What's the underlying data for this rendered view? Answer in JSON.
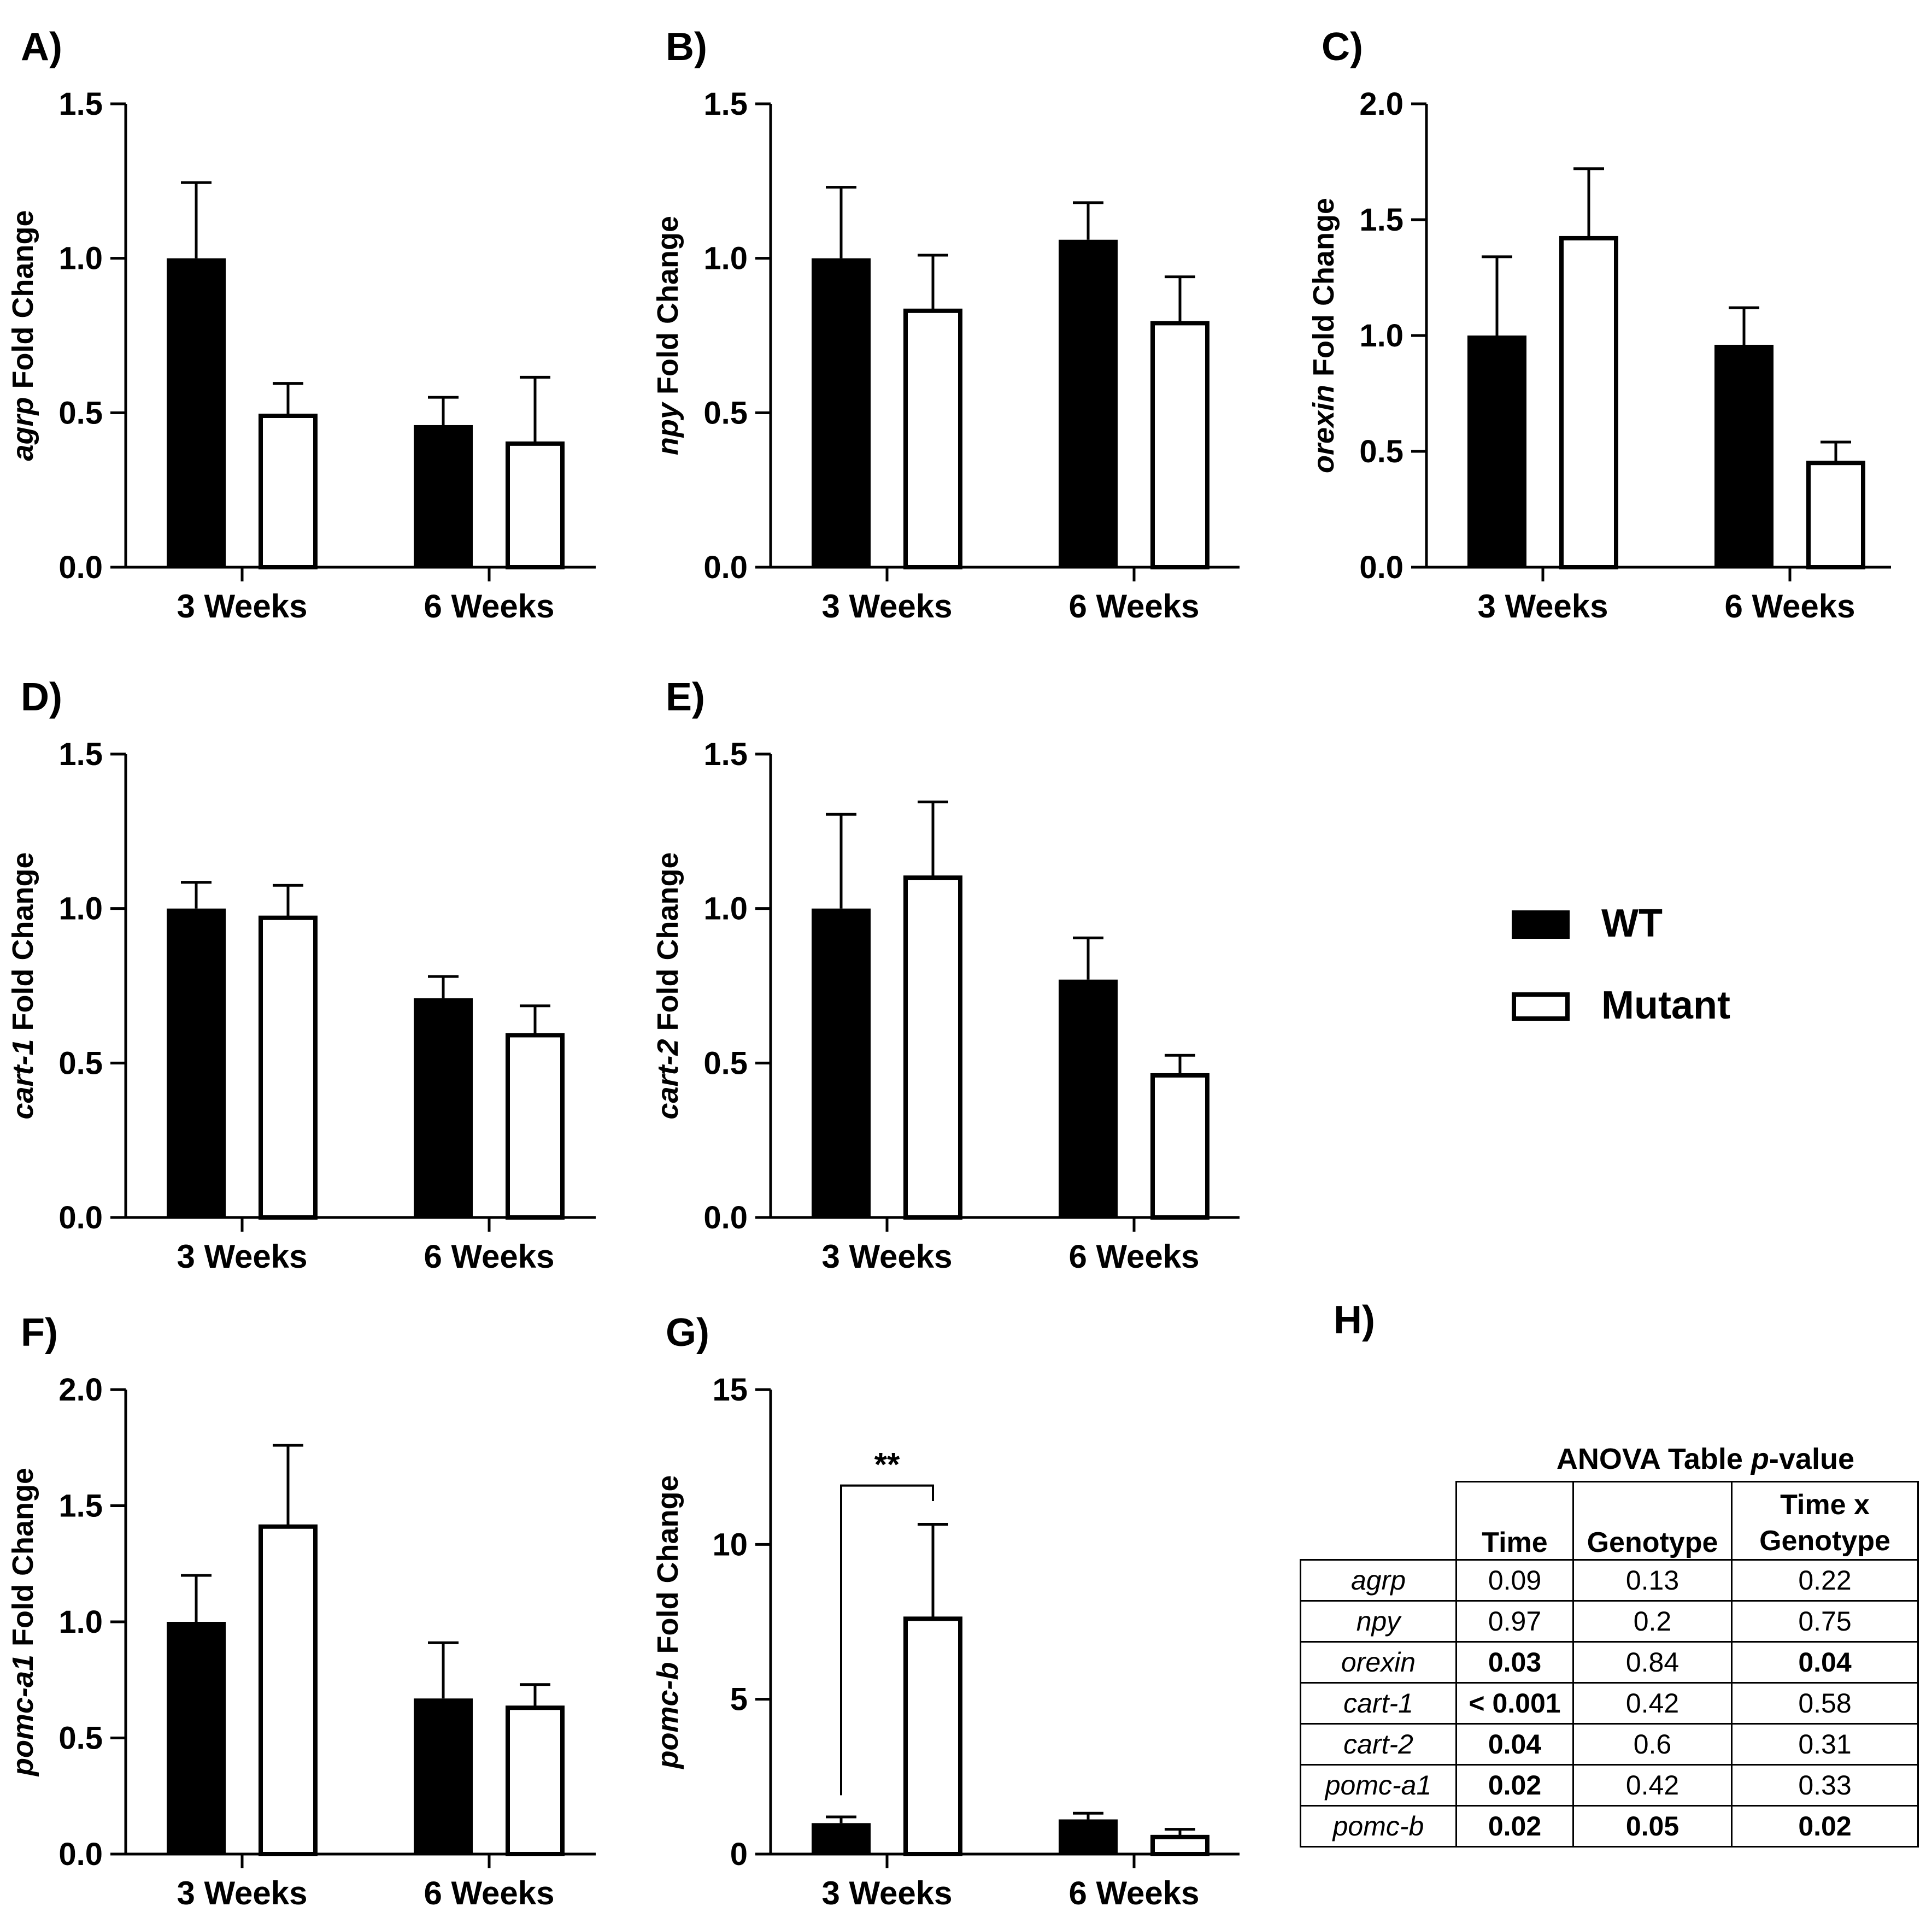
{
  "legend": [
    {
      "name": "WT",
      "fill": "#000000"
    },
    {
      "name": "Mutant",
      "fill": "#ffffff"
    }
  ],
  "chart_data": [
    {
      "panel": "A)",
      "type": "bar",
      "gene": "agrp",
      "ylabel_suffix": " Fold Change",
      "categories": [
        "3 Weeks",
        "6 Weeks"
      ],
      "ylim": [
        0,
        1.5
      ],
      "ticks": [
        0.0,
        0.5,
        1.0,
        1.5
      ],
      "tick_decimals": 1,
      "series": [
        {
          "name": "WT",
          "values": [
            1.0,
            0.46
          ],
          "errors": [
            0.245,
            0.09
          ]
        },
        {
          "name": "Mutant",
          "values": [
            0.49,
            0.4
          ],
          "errors": [
            0.105,
            0.215
          ]
        }
      ]
    },
    {
      "panel": "B)",
      "type": "bar",
      "gene": "npy",
      "ylabel_suffix": " Fold Change",
      "categories": [
        "3 Weeks",
        "6 Weeks"
      ],
      "ylim": [
        0,
        1.5
      ],
      "ticks": [
        0.0,
        0.5,
        1.0,
        1.5
      ],
      "tick_decimals": 1,
      "series": [
        {
          "name": "WT",
          "values": [
            1.0,
            1.06
          ],
          "errors": [
            0.23,
            0.12
          ]
        },
        {
          "name": "Mutant",
          "values": [
            0.83,
            0.79
          ],
          "errors": [
            0.18,
            0.15
          ]
        }
      ]
    },
    {
      "panel": "C)",
      "type": "bar",
      "gene": "orexin",
      "ylabel_suffix": " Fold Change",
      "categories": [
        "3 Weeks",
        "6 Weeks"
      ],
      "ylim": [
        0,
        2.0
      ],
      "ticks": [
        0.0,
        0.5,
        1.0,
        1.5,
        2.0
      ],
      "tick_decimals": 1,
      "series": [
        {
          "name": "WT",
          "values": [
            1.0,
            0.96
          ],
          "errors": [
            0.34,
            0.16
          ]
        },
        {
          "name": "Mutant",
          "values": [
            1.42,
            0.45
          ],
          "errors": [
            0.3,
            0.09
          ]
        }
      ]
    },
    {
      "panel": "D)",
      "type": "bar",
      "gene": "cart-1",
      "ylabel_suffix": " Fold Change",
      "categories": [
        "3 Weeks",
        "6 Weeks"
      ],
      "ylim": [
        0,
        1.5
      ],
      "ticks": [
        0.0,
        0.5,
        1.0,
        1.5
      ],
      "tick_decimals": 1,
      "series": [
        {
          "name": "WT",
          "values": [
            1.0,
            0.71
          ],
          "errors": [
            0.085,
            0.07
          ]
        },
        {
          "name": "Mutant",
          "values": [
            0.97,
            0.59
          ],
          "errors": [
            0.105,
            0.095
          ]
        }
      ]
    },
    {
      "panel": "E)",
      "type": "bar",
      "gene": "cart-2",
      "ylabel_suffix": " Fold Change",
      "categories": [
        "3 Weeks",
        "6 Weeks"
      ],
      "ylim": [
        0,
        1.5
      ],
      "ticks": [
        0.0,
        0.5,
        1.0,
        1.5
      ],
      "tick_decimals": 1,
      "series": [
        {
          "name": "WT",
          "values": [
            1.0,
            0.77
          ],
          "errors": [
            0.305,
            0.135
          ]
        },
        {
          "name": "Mutant",
          "values": [
            1.1,
            0.46
          ],
          "errors": [
            0.245,
            0.065
          ]
        }
      ]
    },
    {
      "panel": "F)",
      "type": "bar",
      "gene": "pomc-a1",
      "ylabel_suffix": " Fold Change",
      "categories": [
        "3 Weeks",
        "6 Weeks"
      ],
      "ylim": [
        0,
        2.0
      ],
      "ticks": [
        0.0,
        0.5,
        1.0,
        1.5,
        2.0
      ],
      "tick_decimals": 1,
      "series": [
        {
          "name": "WT",
          "values": [
            1.0,
            0.67
          ],
          "errors": [
            0.2,
            0.24
          ]
        },
        {
          "name": "Mutant",
          "values": [
            1.41,
            0.63
          ],
          "errors": [
            0.35,
            0.1
          ]
        }
      ]
    },
    {
      "panel": "G)",
      "type": "bar",
      "gene": "pomc-b",
      "ylabel_suffix": " Fold Change",
      "categories": [
        "3 Weeks",
        "6 Weeks"
      ],
      "ylim": [
        0,
        15
      ],
      "ticks": [
        0,
        5,
        10,
        15
      ],
      "tick_decimals": 0,
      "series": [
        {
          "name": "WT",
          "values": [
            1.0,
            1.12
          ],
          "errors": [
            0.2,
            0.2
          ]
        },
        {
          "name": "Mutant",
          "values": [
            7.6,
            0.55
          ],
          "errors": [
            3.05,
            0.25
          ]
        }
      ],
      "annotation": {
        "text": "**",
        "from_series": 0,
        "to_series": 1,
        "category": 0,
        "bracket_y": 11.9,
        "left_end_y": 1.9,
        "right_end_y": 11.4
      }
    }
  ],
  "anova": {
    "panel": "H)",
    "title_prefix": "ANOVA Table ",
    "title_italic": "p",
    "title_suffix": "-value",
    "headers": [
      "Time",
      "Genotype",
      "Time x",
      "Genotype"
    ],
    "rows": [
      {
        "gene": "agrp",
        "values": [
          "0.09",
          "0.13",
          "0.22"
        ],
        "sig": [
          false,
          false,
          false
        ]
      },
      {
        "gene": "npy",
        "values": [
          "0.97",
          "0.2",
          "0.75"
        ],
        "sig": [
          false,
          false,
          false
        ]
      },
      {
        "gene": "orexin",
        "values": [
          "0.03",
          "0.84",
          "0.04"
        ],
        "sig": [
          true,
          false,
          true
        ]
      },
      {
        "gene": "cart-1",
        "values": [
          "< 0.001",
          "0.42",
          "0.58"
        ],
        "sig": [
          true,
          false,
          false
        ]
      },
      {
        "gene": "cart-2",
        "values": [
          "0.04",
          "0.6",
          "0.31"
        ],
        "sig": [
          true,
          false,
          false
        ]
      },
      {
        "gene": "pomc-a1",
        "values": [
          "0.02",
          "0.42",
          "0.33"
        ],
        "sig": [
          true,
          false,
          false
        ]
      },
      {
        "gene": "pomc-b",
        "values": [
          "0.02",
          "0.05",
          "0.02"
        ],
        "sig": [
          true,
          true,
          true
        ]
      }
    ]
  }
}
